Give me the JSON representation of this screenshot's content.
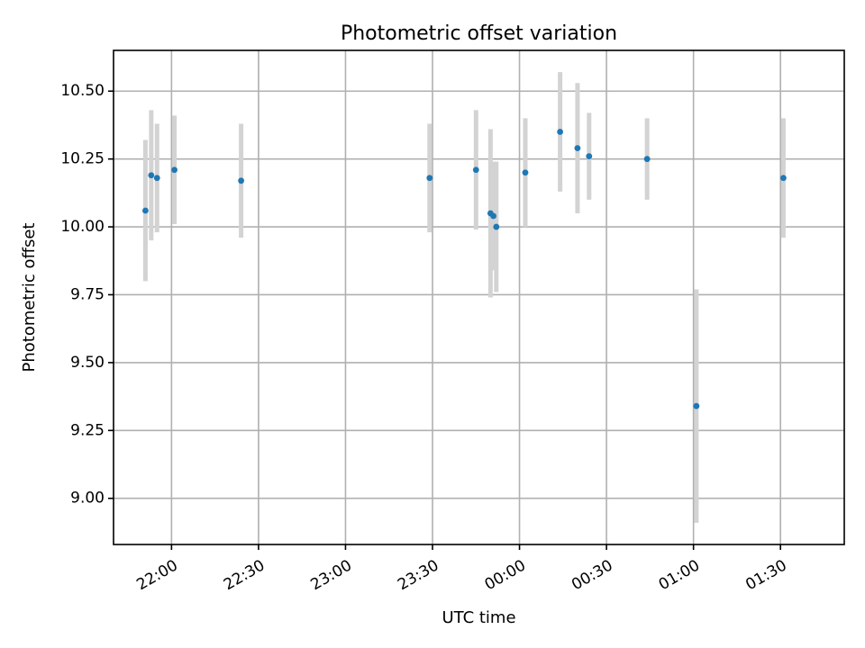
{
  "chart_data": {
    "type": "scatter",
    "title": "Photometric offset variation",
    "xlabel": "UTC time",
    "ylabel": "Photometric offset",
    "x_axis_type": "time",
    "xlim": [
      "21:40",
      "01:52"
    ],
    "ylim": [
      8.83,
      10.65
    ],
    "grid": true,
    "x_ticks": [
      "22:00",
      "22:30",
      "23:00",
      "23:30",
      "00:00",
      "00:30",
      "01:00",
      "01:30"
    ],
    "y_ticks": [
      "9.00",
      "9.25",
      "9.50",
      "9.75",
      "10.00",
      "10.25",
      "10.50"
    ],
    "marker_color": "#1f77b4",
    "errorbar_color": "#d3d3d3",
    "points": [
      {
        "t": "21:51",
        "y": 10.06,
        "err": 0.26
      },
      {
        "t": "21:53",
        "y": 10.19,
        "err": 0.24
      },
      {
        "t": "21:55",
        "y": 10.18,
        "err": 0.2
      },
      {
        "t": "22:01",
        "y": 10.21,
        "err": 0.2
      },
      {
        "t": "22:24",
        "y": 10.17,
        "err": 0.21
      },
      {
        "t": "23:29",
        "y": 10.18,
        "err": 0.2
      },
      {
        "t": "23:45",
        "y": 10.21,
        "err": 0.22
      },
      {
        "t": "23:50",
        "y": 10.05,
        "err": 0.31
      },
      {
        "t": "23:51",
        "y": 10.04,
        "err": 0.2
      },
      {
        "t": "23:52",
        "y": 10.0,
        "err": 0.24
      },
      {
        "t": "00:02",
        "y": 10.2,
        "err": 0.2
      },
      {
        "t": "00:14",
        "y": 10.35,
        "err": 0.22
      },
      {
        "t": "00:20",
        "y": 10.29,
        "err": 0.24
      },
      {
        "t": "00:24",
        "y": 10.26,
        "err": 0.16
      },
      {
        "t": "00:44",
        "y": 10.25,
        "err": 0.15
      },
      {
        "t": "01:01",
        "y": 9.34,
        "err": 0.43
      },
      {
        "t": "01:31",
        "y": 10.18,
        "err": 0.22
      }
    ]
  }
}
